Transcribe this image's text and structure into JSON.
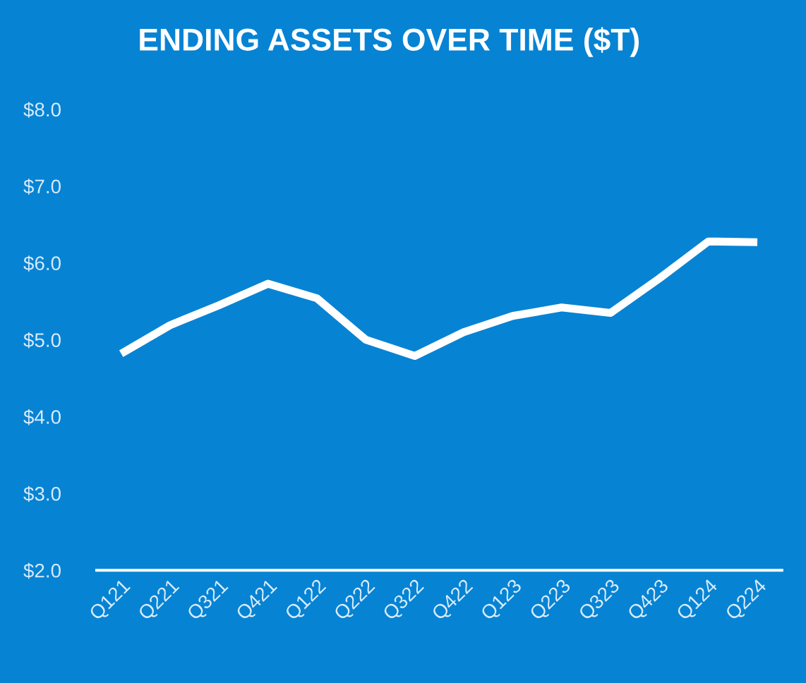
{
  "chart_data": {
    "type": "line",
    "title": "ENDING ASSETS OVER TIME ($T)",
    "categories": [
      "Q121",
      "Q221",
      "Q321",
      "Q421",
      "Q122",
      "Q222",
      "Q322",
      "Q422",
      "Q123",
      "Q223",
      "Q323",
      "Q423",
      "Q124",
      "Q224"
    ],
    "series": [
      {
        "color": "#ffffff",
        "values": [
          4.82,
          5.19,
          5.45,
          5.73,
          5.54,
          5.0,
          4.79,
          5.1,
          5.31,
          5.42,
          5.35,
          5.8,
          6.28,
          6.27
        ]
      }
    ],
    "ylim": [
      2,
      8
    ],
    "yticks": [
      {
        "value": 2,
        "label": "$2.0"
      },
      {
        "value": 3,
        "label": "$3.0"
      },
      {
        "value": 4,
        "label": "$4.0"
      },
      {
        "value": 5,
        "label": "$5.0"
      },
      {
        "value": 6,
        "label": "$6.0"
      },
      {
        "value": 7,
        "label": "$7.0"
      },
      {
        "value": 8,
        "label": "$8.0"
      }
    ],
    "grid": false,
    "legend": false,
    "marker": "none",
    "line_style": "solid"
  }
}
